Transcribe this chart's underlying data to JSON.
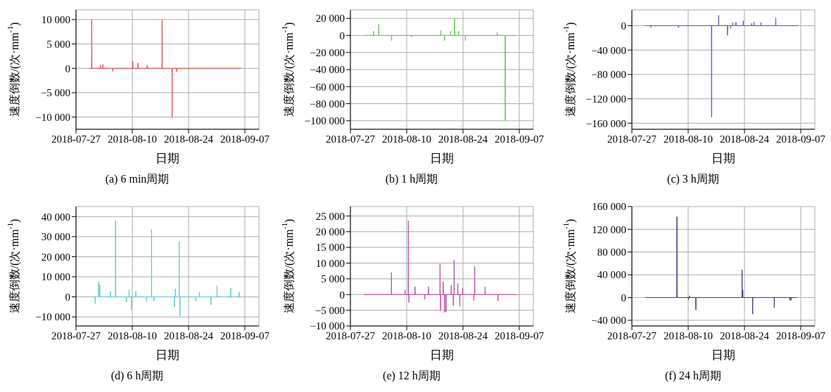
{
  "chart_data": [
    {
      "type": "line",
      "title": "(a) 6 min周期",
      "xlabel": "日期",
      "ylabel": "速度倒数/(次·mm$^{-1}$)",
      "grid": true,
      "marker": "none",
      "line_style": "solid",
      "xlim": [
        "2018-07-27",
        "2018-09-10T12:00"
      ],
      "xticks": [
        "2018-07-27",
        "2018-08-10",
        "2018-08-24",
        "2018-09-07"
      ],
      "ylim": [
        -12500,
        12000
      ],
      "yticks": [
        {
          "value": 10000,
          "label": "10 000"
        },
        {
          "value": 5000,
          "label": "5 000"
        },
        {
          "value": 0,
          "label": "0"
        },
        {
          "value": -5000,
          "label": "−5 000"
        },
        {
          "value": -10000,
          "label": "−10 000"
        }
      ],
      "x": [
        "2018-07-30T06:00",
        "2018-07-30T21:00",
        "2018-07-30T22:00",
        "2018-07-30T23:00",
        "2018-08-02T01:00",
        "2018-08-02T02:00",
        "2018-08-02T03:00",
        "2018-08-02T15:00",
        "2018-08-02T16:00",
        "2018-08-02T17:00",
        "2018-08-05T02:00",
        "2018-08-05T03:00",
        "2018-08-05T04:00",
        "2018-08-10T02:00",
        "2018-08-10T03:00",
        "2018-08-10T04:00",
        "2018-08-11T09:00",
        "2018-08-11T10:00",
        "2018-08-11T11:00",
        "2018-08-13T16:00",
        "2018-08-13T17:00",
        "2018-08-13T18:00",
        "2018-08-17T09:00",
        "2018-08-17T10:00",
        "2018-08-17T11:00",
        "2018-08-19T21:00",
        "2018-08-19T22:00",
        "2018-08-19T23:00",
        "2018-08-21T00:00",
        "2018-08-21T01:00",
        "2018-08-21T02:00",
        "2018-09-06T02:00"
      ],
      "series": [
        {
          "color": "#e04848",
          "values": [
            0,
            0,
            10000,
            0,
            0,
            700,
            0,
            0,
            800,
            0,
            0,
            -600,
            0,
            0,
            1500,
            0,
            0,
            1100,
            0,
            0,
            600,
            0,
            0,
            10000,
            0,
            0,
            -10000,
            0,
            0,
            -700,
            0,
            0
          ]
        }
      ]
    },
    {
      "type": "line",
      "title": "(b) 1 h周期",
      "xlabel": "日期",
      "ylabel": "速度倒数/(次·mm$^{-1}$)",
      "grid": true,
      "marker": "none",
      "line_style": "solid",
      "xlim": [
        "2018-07-27",
        "2018-09-10T12:00"
      ],
      "xticks": [
        "2018-07-27",
        "2018-08-10",
        "2018-08-24",
        "2018-09-07"
      ],
      "ylim": [
        -110000,
        30000
      ],
      "yticks": [
        {
          "value": 20000,
          "label": "20 000"
        },
        {
          "value": 0,
          "label": "0"
        },
        {
          "value": -20000,
          "label": "−20 000"
        },
        {
          "value": -40000,
          "label": "−40 000"
        },
        {
          "value": -60000,
          "label": "−60 000"
        },
        {
          "value": -80000,
          "label": "−80 000"
        },
        {
          "value": -100000,
          "label": "−100 000"
        }
      ],
      "x": [
        "2018-07-30T10:00",
        "2018-08-01T17:00",
        "2018-08-01T18:00",
        "2018-08-01T19:00",
        "2018-08-03T00:00",
        "2018-08-03T01:00",
        "2018-08-03T02:00",
        "2018-08-06T05:00",
        "2018-08-06T06:00",
        "2018-08-06T07:00",
        "2018-08-11T04:00",
        "2018-08-11T05:00",
        "2018-08-11T06:00",
        "2018-08-18T11:00",
        "2018-08-18T12:00",
        "2018-08-18T13:00",
        "2018-08-19T09:00",
        "2018-08-19T10:00",
        "2018-08-19T11:00",
        "2018-08-20T21:00",
        "2018-08-20T22:00",
        "2018-08-20T23:00",
        "2018-08-21T21:00",
        "2018-08-21T22:00",
        "2018-08-21T23:00",
        "2018-08-22T21:00",
        "2018-08-22T22:00",
        "2018-08-22T23:00",
        "2018-08-24T13:00",
        "2018-08-24T14:00",
        "2018-08-24T15:00",
        "2018-09-01T11:00",
        "2018-09-01T12:00",
        "2018-09-01T13:00",
        "2018-09-03T11:00",
        "2018-09-03T12:00",
        "2018-09-03T13:00",
        "2018-09-06T05:00"
      ],
      "series": [
        {
          "color": "#60c850",
          "values": [
            0,
            0,
            5000,
            0,
            0,
            13000,
            0,
            0,
            -6000,
            0,
            0,
            -2000,
            0,
            0,
            6000,
            0,
            0,
            -6000,
            0,
            0,
            5000,
            0,
            0,
            20000,
            0,
            0,
            5000,
            0,
            0,
            -6000,
            0,
            0,
            4000,
            0,
            0,
            -100000,
            0,
            0
          ]
        }
      ]
    },
    {
      "type": "line",
      "title": "(c) 3 h周期",
      "xlabel": "日期",
      "ylabel": "速度倒数/(次·mm$^{-1}$)",
      "grid": true,
      "marker": "none",
      "line_style": "solid",
      "xlim": [
        "2018-07-27",
        "2018-09-10T12:00"
      ],
      "xticks": [
        "2018-07-27",
        "2018-08-10",
        "2018-08-24",
        "2018-09-07"
      ],
      "ylim": [
        -170000,
        26000
      ],
      "yticks": [
        {
          "value": 0,
          "label": "0"
        },
        {
          "value": -40000,
          "label": "−40 000"
        },
        {
          "value": -80000,
          "label": "−80 000"
        },
        {
          "value": -120000,
          "label": "−120 000"
        },
        {
          "value": -160000,
          "label": "−160 000"
        }
      ],
      "x": [
        "2018-07-30T05:00",
        "2018-07-31T16:00",
        "2018-07-31T17:00",
        "2018-07-31T18:00",
        "2018-08-07T13:00",
        "2018-08-07T14:00",
        "2018-08-07T15:00",
        "2018-08-15T19:00",
        "2018-08-15T20:00",
        "2018-08-15T21:00",
        "2018-08-17T13:00",
        "2018-08-17T14:00",
        "2018-08-17T15:00",
        "2018-08-19T18:00",
        "2018-08-19T19:00",
        "2018-08-19T20:00",
        "2018-08-20T13:00",
        "2018-08-20T14:00",
        "2018-08-20T15:00",
        "2018-08-21T01:00",
        "2018-08-21T02:00",
        "2018-08-21T03:00",
        "2018-08-21T20:00",
        "2018-08-21T21:00",
        "2018-08-21T22:00",
        "2018-08-23T16:00",
        "2018-08-23T17:00",
        "2018-08-23T18:00",
        "2018-08-25T18:00",
        "2018-08-25T19:00",
        "2018-08-25T20:00",
        "2018-08-26T08:00",
        "2018-08-26T09:00",
        "2018-08-26T10:00",
        "2018-08-28T01:00",
        "2018-08-28T02:00",
        "2018-08-28T03:00",
        "2018-08-31T18:00",
        "2018-08-31T19:00",
        "2018-08-31T20:00",
        "2018-09-06T10:00"
      ],
      "series": [
        {
          "color": "#5858b8",
          "values": [
            0,
            0,
            -3000,
            0,
            0,
            -3000,
            0,
            0,
            -150000,
            0,
            0,
            17000,
            0,
            0,
            -16000,
            0,
            0,
            -5000,
            0,
            0,
            5000,
            0,
            0,
            6000,
            0,
            0,
            8000,
            0,
            0,
            4000,
            0,
            0,
            6000,
            0,
            0,
            5000,
            0,
            0,
            13000,
            0,
            0
          ]
        }
      ]
    },
    {
      "type": "line",
      "title": "(d) 6 h周期",
      "xlabel": "日期",
      "ylabel": "速度倒数/(次·mm$^{-1}$)",
      "grid": true,
      "marker": "none",
      "line_style": "solid",
      "xlim": [
        "2018-07-27",
        "2018-09-10T12:00"
      ],
      "xticks": [
        "2018-07-27",
        "2018-08-10",
        "2018-08-24",
        "2018-09-07"
      ],
      "ylim": [
        -14500,
        45000
      ],
      "yticks": [
        {
          "value": 40000,
          "label": "40 000"
        },
        {
          "value": 30000,
          "label": "30 000"
        },
        {
          "value": 20000,
          "label": "20 000"
        },
        {
          "value": 10000,
          "label": "10 000"
        },
        {
          "value": 0,
          "label": "0"
        },
        {
          "value": -10000,
          "label": "−10 000"
        }
      ],
      "x": [
        "2018-07-30T14:00",
        "2018-07-31T18:00",
        "2018-07-31T19:00",
        "2018-07-31T20:00",
        "2018-08-01T14:00",
        "2018-08-01T15:00",
        "2018-08-01T16:00",
        "2018-08-01T21:00",
        "2018-08-01T22:00",
        "2018-08-01T23:00",
        "2018-08-04T13:00",
        "2018-08-04T14:00",
        "2018-08-04T15:00",
        "2018-08-05T19:00",
        "2018-08-05T20:00",
        "2018-08-05T21:00",
        "2018-08-08T13:00",
        "2018-08-08T14:00",
        "2018-08-08T15:00",
        "2018-08-09T04:00",
        "2018-08-09T05:00",
        "2018-08-09T06:00",
        "2018-08-09T18:00",
        "2018-08-09T19:00",
        "2018-08-09T20:00",
        "2018-08-10T20:00",
        "2018-08-10T21:00",
        "2018-08-10T22:00",
        "2018-08-13T13:00",
        "2018-08-13T14:00",
        "2018-08-13T15:00",
        "2018-08-14T18:00",
        "2018-08-14T19:00",
        "2018-08-14T20:00",
        "2018-08-15T09:00",
        "2018-08-15T10:00",
        "2018-08-15T11:00",
        "2018-08-20T11:00",
        "2018-08-20T12:00",
        "2018-08-20T13:00",
        "2018-08-20T16:00",
        "2018-08-20T17:00",
        "2018-08-20T18:00",
        "2018-08-21T15:00",
        "2018-08-21T16:00",
        "2018-08-21T17:00",
        "2018-08-21T20:00",
        "2018-08-21T21:00",
        "2018-08-21T22:00",
        "2018-08-25T18:00",
        "2018-08-25T19:00",
        "2018-08-25T20:00",
        "2018-08-26T16:00",
        "2018-08-26T17:00",
        "2018-08-26T18:00",
        "2018-08-29T13:00",
        "2018-08-29T14:00",
        "2018-08-29T15:00",
        "2018-08-31T01:00",
        "2018-08-31T02:00",
        "2018-08-31T03:00",
        "2018-09-03T11:00",
        "2018-09-03T12:00",
        "2018-09-03T13:00",
        "2018-09-05T13:00",
        "2018-09-05T14:00",
        "2018-09-05T15:00",
        "2018-09-06T02:00"
      ],
      "series": [
        {
          "color": "#60c8d0",
          "values": [
            0,
            0,
            -3500,
            0,
            0,
            7500,
            0,
            0,
            6000,
            0,
            0,
            2800,
            0,
            0,
            38000,
            0,
            0,
            -2500,
            0,
            0,
            3500,
            0,
            0,
            -6500,
            0,
            0,
            2800,
            0,
            0,
            -2500,
            0,
            0,
            33500,
            0,
            0,
            -2000,
            0,
            0,
            -5000,
            0,
            0,
            4000,
            0,
            0,
            27500,
            0,
            0,
            -9500,
            0,
            0,
            -2000,
            0,
            0,
            2500,
            0,
            0,
            -4000,
            0,
            0,
            5500,
            0,
            0,
            4300,
            0,
            0,
            2500,
            0,
            0
          ]
        }
      ]
    },
    {
      "type": "line",
      "title": "(e) 12 h周期",
      "xlabel": "日期",
      "ylabel": "速度倒数/(次·mm$^{-1}$)",
      "grid": true,
      "marker": "none",
      "line_style": "solid",
      "xlim": [
        "2018-07-27",
        "2018-09-10T12:00"
      ],
      "xticks": [
        "2018-07-27",
        "2018-08-10",
        "2018-08-24",
        "2018-09-07"
      ],
      "ylim": [
        -10000,
        28000
      ],
      "yticks": [
        {
          "value": 25000,
          "label": "25 000"
        },
        {
          "value": 20000,
          "label": "20 000"
        },
        {
          "value": 15000,
          "label": "15 000"
        },
        {
          "value": 10000,
          "label": "10 000"
        },
        {
          "value": 5000,
          "label": "5 000"
        },
        {
          "value": 0,
          "label": "0"
        },
        {
          "value": -5000,
          "label": "−5 000"
        },
        {
          "value": -10000,
          "label": "−10 000"
        }
      ],
      "x": [
        "2018-07-30T07:00",
        "2018-08-06T04:00",
        "2018-08-06T05:00",
        "2018-08-06T06:00",
        "2018-08-09T13:00",
        "2018-08-09T14:00",
        "2018-08-09T15:00",
        "2018-08-10T09:00",
        "2018-08-10T10:00",
        "2018-08-10T11:00",
        "2018-08-10T12:00",
        "2018-08-10T13:00",
        "2018-08-10T14:00",
        "2018-08-12T01:00",
        "2018-08-12T02:00",
        "2018-08-12T03:00",
        "2018-08-14T11:00",
        "2018-08-14T12:00",
        "2018-08-14T13:00",
        "2018-08-15T09:00",
        "2018-08-15T10:00",
        "2018-08-15T11:00",
        "2018-08-18T06:00",
        "2018-08-18T07:00",
        "2018-08-18T08:00",
        "2018-08-18T09:00",
        "2018-08-18T10:00",
        "2018-08-18T11:00",
        "2018-08-19T01:00",
        "2018-08-19T02:00",
        "2018-08-19T03:00",
        "2018-08-19T09:00",
        "2018-08-19T10:00",
        "2018-08-19T11:00",
        "2018-08-19T18:00",
        "2018-08-19T19:00",
        "2018-08-19T20:00",
        "2018-08-21T01:00",
        "2018-08-21T02:00",
        "2018-08-21T03:00",
        "2018-08-21T13:00",
        "2018-08-21T14:00",
        "2018-08-21T15:00",
        "2018-08-21T18:00",
        "2018-08-21T19:00",
        "2018-08-21T20:00",
        "2018-08-22T16:00",
        "2018-08-22T17:00",
        "2018-08-22T18:00",
        "2018-08-23T04:00",
        "2018-08-23T05:00",
        "2018-08-23T06:00",
        "2018-08-23T21:00",
        "2018-08-23T22:00",
        "2018-08-23T23:00",
        "2018-08-26T16:00",
        "2018-08-26T17:00",
        "2018-08-26T18:00",
        "2018-08-26T21:00",
        "2018-08-26T22:00",
        "2018-08-26T23:00",
        "2018-08-29T11:00",
        "2018-08-29T12:00",
        "2018-08-29T13:00",
        "2018-09-01T16:00",
        "2018-09-01T17:00",
        "2018-09-01T18:00",
        "2018-09-06T10:00"
      ],
      "series": [
        {
          "color": "#c048a0",
          "values": [
            0,
            0,
            7000,
            0,
            0,
            1500,
            0,
            0,
            23500,
            0,
            0,
            -2500,
            0,
            0,
            2500,
            0,
            0,
            -1500,
            0,
            0,
            2500,
            0,
            0,
            9800,
            0,
            0,
            -5000,
            0,
            0,
            4000,
            0,
            0,
            -5700,
            0,
            0,
            -5500,
            0,
            0,
            3000,
            0,
            0,
            -3500,
            0,
            0,
            11000,
            0,
            0,
            3500,
            0,
            0,
            -3800,
            0,
            0,
            2000,
            0,
            0,
            -2000,
            0,
            0,
            9000,
            0,
            0,
            2500,
            0,
            0,
            -2000,
            0,
            0
          ]
        }
      ]
    },
    {
      "type": "line",
      "title": "(f) 24 h周期",
      "xlabel": "日期",
      "ylabel": "速度倒数/(次·mm$^{-1}$)",
      "grid": true,
      "marker": "none",
      "line_style": "solid",
      "xlim": [
        "2018-07-27",
        "2018-09-10T12:00"
      ],
      "xticks": [
        "2018-07-27",
        "2018-08-10",
        "2018-08-24",
        "2018-09-07"
      ],
      "ylim": [
        -50000,
        160000
      ],
      "yticks": [
        {
          "value": 160000,
          "label": "160 000"
        },
        {
          "value": 120000,
          "label": "120 000"
        },
        {
          "value": 80000,
          "label": "80 000"
        },
        {
          "value": 40000,
          "label": "40 000"
        },
        {
          "value": 0,
          "label": "0"
        },
        {
          "value": -40000,
          "label": "−40 000"
        }
      ],
      "x": [
        "2018-07-30T10:00",
        "2018-08-07T04:00",
        "2018-08-07T05:00",
        "2018-08-07T06:00",
        "2018-08-10T01:00",
        "2018-08-10T02:00",
        "2018-08-10T03:00",
        "2018-08-10T07:00",
        "2018-08-10T08:00",
        "2018-08-10T09:00",
        "2018-08-11T21:00",
        "2018-08-11T22:00",
        "2018-08-11T23:00",
        "2018-08-23T09:00",
        "2018-08-23T10:00",
        "2018-08-23T11:00",
        "2018-08-23T13:00",
        "2018-08-23T14:00",
        "2018-08-23T15:00",
        "2018-08-26T00:00",
        "2018-08-26T01:00",
        "2018-08-26T02:00",
        "2018-08-31T09:00",
        "2018-08-31T10:00",
        "2018-08-31T11:00",
        "2018-09-04T06:00",
        "2018-09-04T07:00",
        "2018-09-04T08:00",
        "2018-09-04T13:00",
        "2018-09-04T14:00",
        "2018-09-04T15:00",
        "2018-09-06T01:00"
      ],
      "series": [
        {
          "color": "#383878",
          "values": [
            0,
            0,
            142000,
            0,
            0,
            -4000,
            0,
            0,
            3000,
            0,
            0,
            -22000,
            0,
            0,
            49000,
            0,
            0,
            13000,
            0,
            0,
            -29000,
            0,
            0,
            -18000,
            0,
            0,
            -5000,
            0,
            0,
            -5000,
            0,
            0
          ]
        }
      ]
    }
  ]
}
